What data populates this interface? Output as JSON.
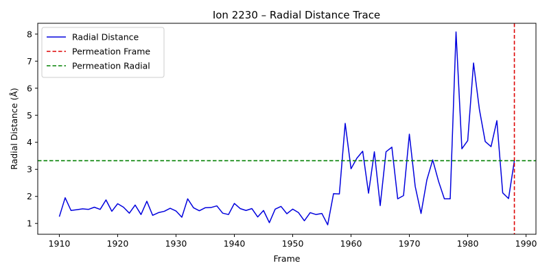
{
  "chart_data": {
    "type": "line",
    "title": "Ion 2230 – Radial Distance Trace",
    "xlabel": "Frame",
    "ylabel": "Radial Distance (Å)",
    "xlim": [
      1906.3,
      1991.7
    ],
    "ylim": [
      0.6,
      8.4
    ],
    "xticks": [
      1910,
      1920,
      1930,
      1940,
      1950,
      1960,
      1970,
      1980,
      1990
    ],
    "yticks": [
      1,
      2,
      3,
      4,
      5,
      6,
      7,
      8
    ],
    "grid": false,
    "legend_position": "top-left",
    "series": [
      {
        "name": "Radial Distance",
        "color": "#0000dd",
        "x": [
          1910,
          1911,
          1912,
          1913,
          1914,
          1915,
          1916,
          1917,
          1918,
          1919,
          1920,
          1921,
          1922,
          1923,
          1924,
          1925,
          1926,
          1927,
          1928,
          1929,
          1930,
          1931,
          1932,
          1933,
          1934,
          1935,
          1936,
          1937,
          1938,
          1939,
          1940,
          1941,
          1942,
          1943,
          1944,
          1945,
          1946,
          1947,
          1948,
          1949,
          1950,
          1951,
          1952,
          1953,
          1954,
          1955,
          1956,
          1957,
          1958,
          1959,
          1960,
          1961,
          1962,
          1963,
          1964,
          1965,
          1966,
          1967,
          1968,
          1969,
          1970,
          1971,
          1972,
          1973,
          1974,
          1975,
          1976,
          1977,
          1978,
          1979,
          1980,
          1981,
          1982,
          1983,
          1984,
          1985,
          1986,
          1987,
          1988
        ],
        "y": [
          1.25,
          1.95,
          1.48,
          1.51,
          1.54,
          1.52,
          1.6,
          1.52,
          1.87,
          1.45,
          1.73,
          1.6,
          1.38,
          1.68,
          1.33,
          1.82,
          1.3,
          1.4,
          1.45,
          1.56,
          1.46,
          1.23,
          1.91,
          1.58,
          1.47,
          1.58,
          1.59,
          1.65,
          1.38,
          1.33,
          1.74,
          1.55,
          1.48,
          1.55,
          1.24,
          1.48,
          1.03,
          1.53,
          1.63,
          1.36,
          1.53,
          1.4,
          1.1,
          1.4,
          1.33,
          1.37,
          0.95,
          2.1,
          2.09,
          4.7,
          3.02,
          3.41,
          3.67,
          2.12,
          3.65,
          1.66,
          3.65,
          3.82,
          1.91,
          2.03,
          4.3,
          2.37,
          1.37,
          2.61,
          3.35,
          2.56,
          1.91,
          1.91,
          8.08,
          3.76,
          4.06,
          6.93,
          5.22,
          4.03,
          3.84,
          4.8,
          2.13,
          1.92,
          3.32
        ]
      }
    ],
    "reference_lines": [
      {
        "name": "Permeation Frame",
        "orientation": "vertical",
        "value": 1988,
        "color": "#dd0000",
        "style": "dashed"
      },
      {
        "name": "Permeation Radial",
        "orientation": "horizontal",
        "value": 3.32,
        "color": "#008000",
        "style": "dashed"
      }
    ]
  }
}
